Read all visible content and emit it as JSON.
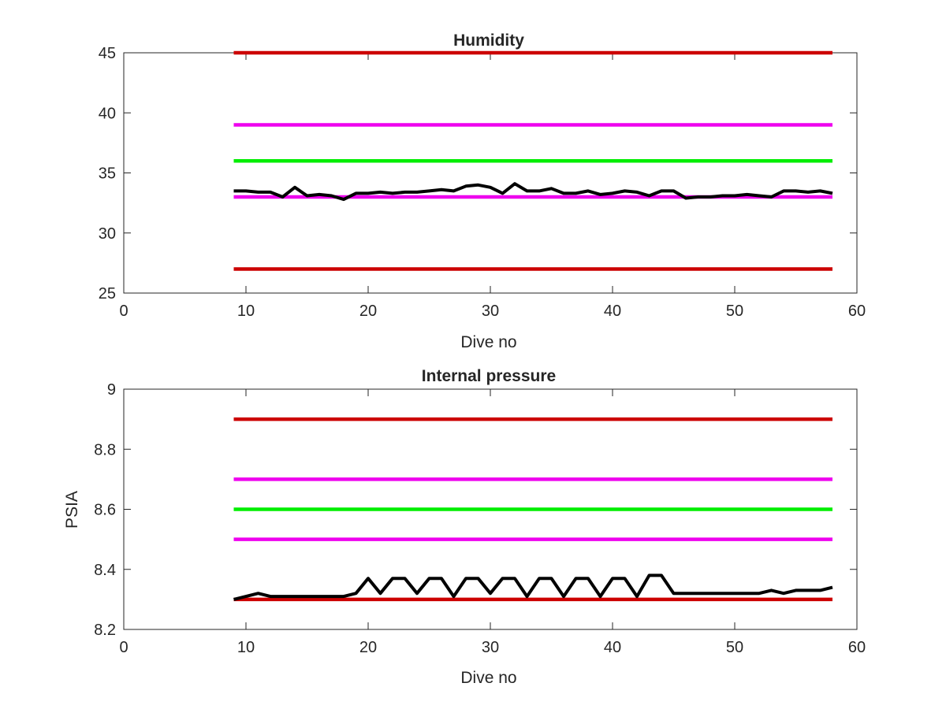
{
  "chart_data": [
    {
      "type": "line",
      "title": "Humidity",
      "xlabel": "Dive no",
      "ylabel": "",
      "xlim": [
        0,
        60
      ],
      "ylim": [
        25,
        45
      ],
      "xticks": [
        0,
        10,
        20,
        30,
        40,
        50,
        60
      ],
      "yticks": [
        25,
        30,
        35,
        40,
        45
      ],
      "grid": false,
      "legend": "none",
      "series": [
        {
          "color": "#cc0000",
          "x": [
            9,
            58
          ],
          "y": [
            45,
            45
          ]
        },
        {
          "color": "#ee00ee",
          "x": [
            9,
            58
          ],
          "y": [
            39,
            39
          ]
        },
        {
          "color": "#00ee00",
          "x": [
            9,
            58
          ],
          "y": [
            36,
            36
          ]
        },
        {
          "color": "#ee00ee",
          "x": [
            9,
            58
          ],
          "y": [
            33,
            33
          ]
        },
        {
          "color": "#cc0000",
          "x": [
            9,
            58
          ],
          "y": [
            27,
            27
          ]
        },
        {
          "color": "#000000",
          "x": [
            9,
            10,
            11,
            12,
            13,
            14,
            15,
            16,
            17,
            18,
            19,
            20,
            21,
            22,
            23,
            24,
            25,
            26,
            27,
            28,
            29,
            30,
            31,
            32,
            33,
            34,
            35,
            36,
            37,
            38,
            39,
            40,
            41,
            42,
            43,
            44,
            45,
            46,
            47,
            48,
            49,
            50,
            51,
            52,
            53,
            54,
            55,
            56,
            57,
            58
          ],
          "y": [
            33.5,
            33.5,
            33.4,
            33.4,
            33.0,
            33.8,
            33.1,
            33.2,
            33.1,
            32.8,
            33.3,
            33.3,
            33.4,
            33.3,
            33.4,
            33.4,
            33.5,
            33.6,
            33.5,
            33.9,
            34.0,
            33.8,
            33.3,
            34.1,
            33.5,
            33.5,
            33.7,
            33.3,
            33.3,
            33.5,
            33.2,
            33.3,
            33.5,
            33.4,
            33.1,
            33.5,
            33.5,
            32.9,
            33.0,
            33.0,
            33.1,
            33.1,
            33.2,
            33.1,
            33.0,
            33.5,
            33.5,
            33.4,
            33.5,
            33.3
          ]
        }
      ]
    },
    {
      "type": "line",
      "title": "Internal pressure",
      "xlabel": "Dive no",
      "ylabel": "PSIA",
      "xlim": [
        0,
        60
      ],
      "ylim": [
        8.2,
        9
      ],
      "xticks": [
        0,
        10,
        20,
        30,
        40,
        50,
        60
      ],
      "yticks": [
        8.2,
        8.4,
        8.6,
        8.8,
        9
      ],
      "grid": false,
      "legend": "none",
      "series": [
        {
          "color": "#cc0000",
          "x": [
            9,
            58
          ],
          "y": [
            8.9,
            8.9
          ]
        },
        {
          "color": "#ee00ee",
          "x": [
            9,
            58
          ],
          "y": [
            8.7,
            8.7
          ]
        },
        {
          "color": "#00ee00",
          "x": [
            9,
            58
          ],
          "y": [
            8.6,
            8.6
          ]
        },
        {
          "color": "#ee00ee",
          "x": [
            9,
            58
          ],
          "y": [
            8.5,
            8.5
          ]
        },
        {
          "color": "#cc0000",
          "x": [
            9,
            58
          ],
          "y": [
            8.3,
            8.3
          ]
        },
        {
          "color": "#000000",
          "x": [
            9,
            10,
            11,
            12,
            13,
            14,
            15,
            16,
            17,
            18,
            19,
            20,
            21,
            22,
            23,
            24,
            25,
            26,
            27,
            28,
            29,
            30,
            31,
            32,
            33,
            34,
            35,
            36,
            37,
            38,
            39,
            40,
            41,
            42,
            43,
            44,
            45,
            46,
            47,
            48,
            49,
            50,
            51,
            52,
            53,
            54,
            55,
            56,
            57,
            58
          ],
          "y": [
            8.3,
            8.31,
            8.32,
            8.31,
            8.31,
            8.31,
            8.31,
            8.31,
            8.31,
            8.31,
            8.32,
            8.37,
            8.32,
            8.37,
            8.37,
            8.32,
            8.37,
            8.37,
            8.31,
            8.37,
            8.37,
            8.32,
            8.37,
            8.37,
            8.31,
            8.37,
            8.37,
            8.31,
            8.37,
            8.37,
            8.31,
            8.37,
            8.37,
            8.31,
            8.38,
            8.38,
            8.32,
            8.32,
            8.32,
            8.32,
            8.32,
            8.32,
            8.32,
            8.32,
            8.33,
            8.32,
            8.33,
            8.33,
            8.33,
            8.34
          ]
        }
      ]
    }
  ]
}
